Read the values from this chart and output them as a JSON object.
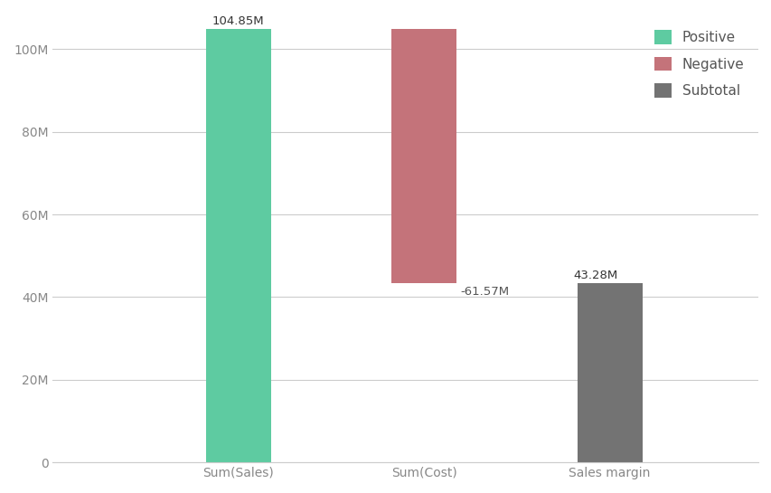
{
  "categories": [
    "Sum(Sales)",
    "Sum(Cost)",
    "Sales margin"
  ],
  "values": [
    104.85,
    -61.57,
    43.28
  ],
  "bar_types": [
    "positive",
    "negative",
    "subtotal"
  ],
  "colors": {
    "positive": "#5ECBA1",
    "negative": "#C4737A",
    "subtotal": "#737373"
  },
  "legend_labels": [
    "Positive",
    "Negative",
    "Subtotal"
  ],
  "ylim": [
    0,
    108
  ],
  "yticks": [
    0,
    20,
    40,
    60,
    80,
    100
  ],
  "ytick_labels": [
    "0",
    "20M",
    "40M",
    "60M",
    "80M",
    "100M"
  ],
  "label_fontsize": 9.5,
  "tick_fontsize": 10,
  "legend_fontsize": 11,
  "bar_width": 0.35,
  "background_color": "#ffffff",
  "grid_color": "#cccccc",
  "annotations": [
    "104.85M",
    "-61.57M",
    "43.28M"
  ]
}
